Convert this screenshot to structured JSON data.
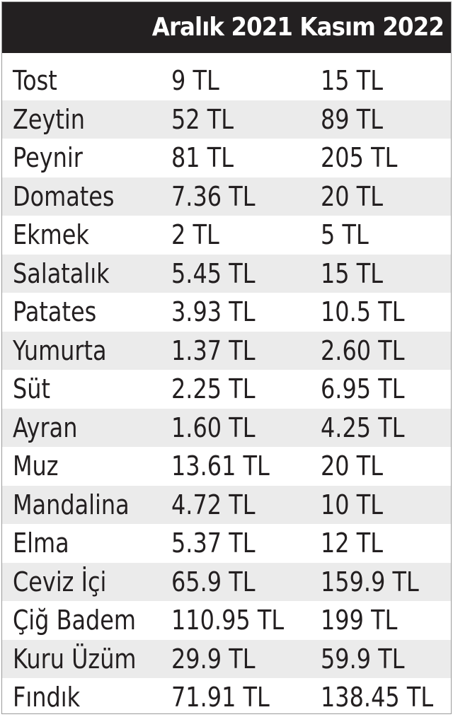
{
  "header": {
    "title": "Aralık 2021 Kasım 2022"
  },
  "rows": [
    {
      "item": "Tost",
      "dec_2021": "9 TL",
      "nov_2022": "15 TL"
    },
    {
      "item": "Zeytin",
      "dec_2021": "52 TL",
      "nov_2022": "89 TL"
    },
    {
      "item": "Peynir",
      "dec_2021": "81 TL",
      "nov_2022": "205 TL"
    },
    {
      "item": "Domates",
      "dec_2021": "7.36 TL",
      "nov_2022": "20 TL"
    },
    {
      "item": "Ekmek",
      "dec_2021": "2 TL",
      "nov_2022": "5 TL"
    },
    {
      "item": "Salatalık",
      "dec_2021": "5.45 TL",
      "nov_2022": "15 TL"
    },
    {
      "item": "Patates",
      "dec_2021": "3.93 TL",
      "nov_2022": "10.5 TL"
    },
    {
      "item": "Yumurta",
      "dec_2021": "1.37 TL",
      "nov_2022": "2.60 TL"
    },
    {
      "item": "Süt",
      "dec_2021": "2.25 TL",
      "nov_2022": "6.95 TL"
    },
    {
      "item": "Ayran",
      "dec_2021": "1.60 TL",
      "nov_2022": "4.25 TL"
    },
    {
      "item": "Muz",
      "dec_2021": "13.61 TL",
      "nov_2022": "20 TL"
    },
    {
      "item": "Mandalina",
      "dec_2021": "4.72 TL",
      "nov_2022": "10 TL"
    },
    {
      "item": "Elma",
      "dec_2021": "5.37 TL",
      "nov_2022": "12 TL"
    },
    {
      "item": "Ceviz İçi",
      "dec_2021": "65.9 TL",
      "nov_2022": "159.9 TL"
    },
    {
      "item": "Çiğ Badem",
      "dec_2021": "110.95 TL",
      "nov_2022": "199 TL"
    },
    {
      "item": "Kuru Üzüm",
      "dec_2021": "29.9 TL",
      "nov_2022": "59.9 TL"
    },
    {
      "item": "Fındık",
      "dec_2021": "71.91 TL",
      "nov_2022": "138.45 TL"
    }
  ]
}
